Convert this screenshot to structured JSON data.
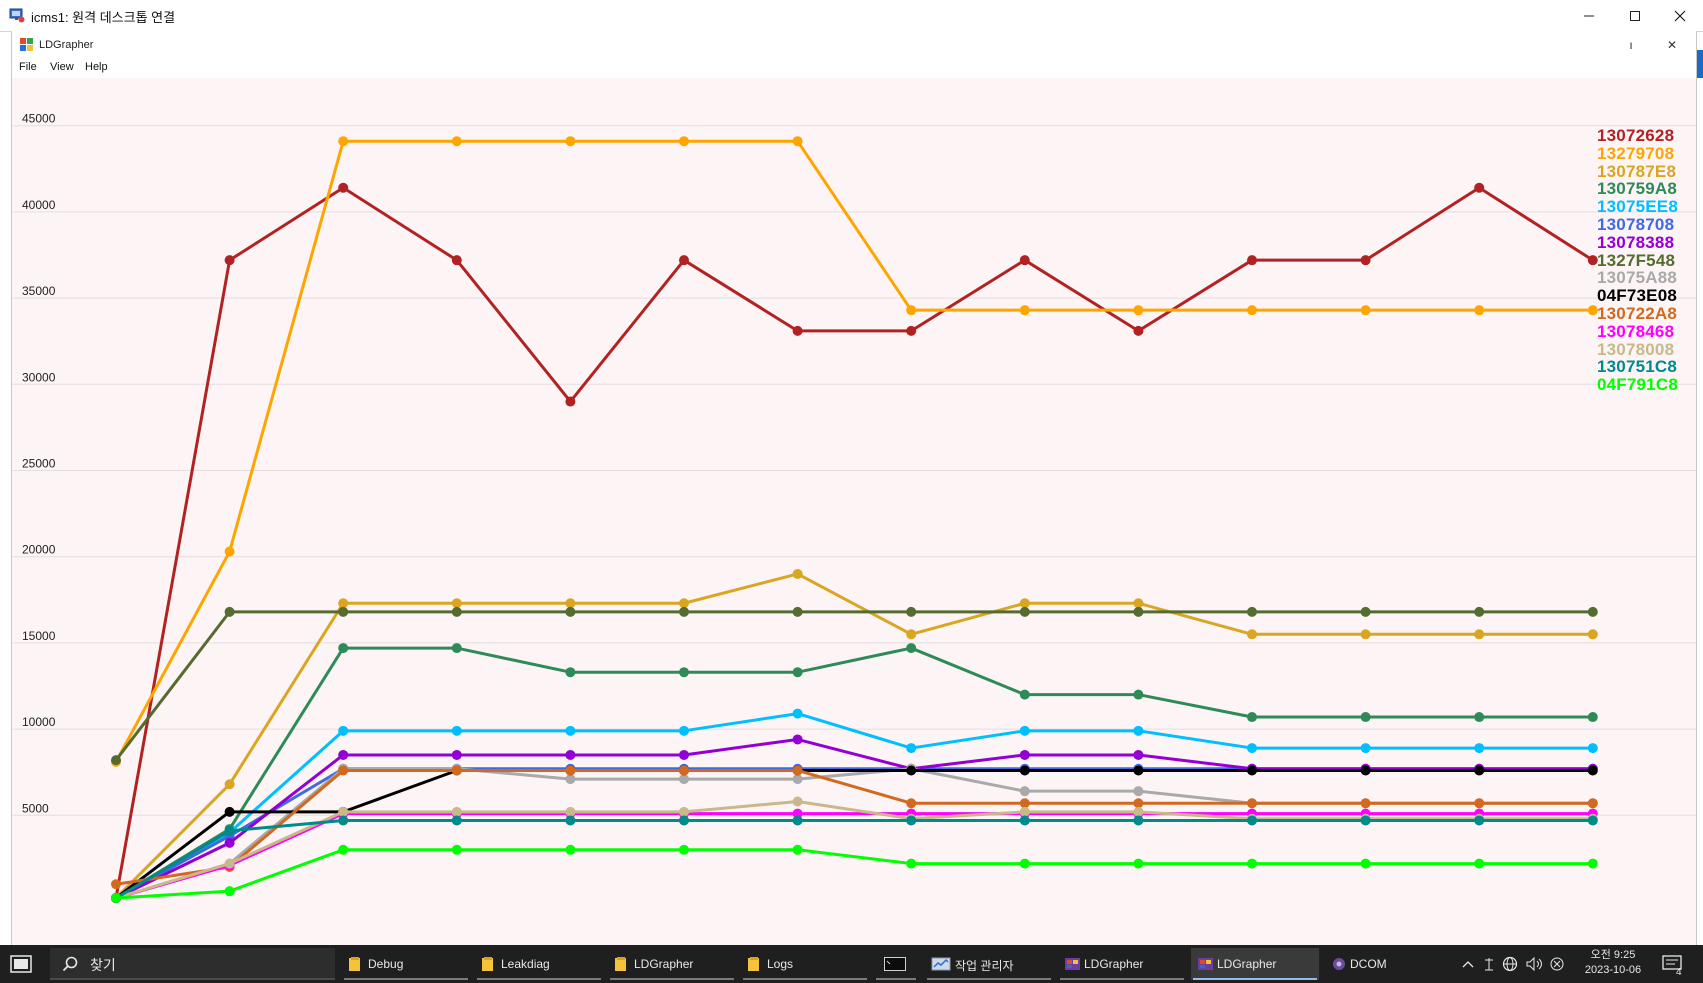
{
  "remote_desktop": {
    "title": "icms1: 원격 데스크톱 연결",
    "controls": {
      "minimize": "—",
      "maximize": "☐",
      "close": "✕"
    }
  },
  "app": {
    "title": "LDGrapher",
    "controls": {
      "minimize": "ı",
      "close": "✕"
    },
    "menu": [
      "File",
      "View",
      "Help"
    ]
  },
  "chart_data": {
    "type": "line",
    "title": "",
    "xlabel": "",
    "ylabel": "",
    "x": [
      1,
      2,
      3,
      4,
      5,
      6,
      7,
      8,
      9,
      10,
      11,
      12,
      13,
      14
    ],
    "ylim": [
      0,
      50000
    ],
    "yticks": [
      5000,
      10000,
      15000,
      20000,
      25000,
      30000,
      35000,
      40000,
      45000
    ],
    "grid": "horizontal",
    "legend_position": "top-right",
    "background": "#fdf4f6",
    "series": [
      {
        "name": "13072628",
        "color": "#b22222",
        "values": [
          200,
          37200,
          41400,
          37200,
          29000,
          37200,
          33100,
          33100,
          37200,
          33100,
          37200,
          37200,
          41400,
          37200
        ]
      },
      {
        "name": "13279708",
        "color": "#ffa500",
        "values": [
          8100,
          20300,
          44100,
          44100,
          44100,
          44100,
          44100,
          34300,
          34300,
          34300,
          34300,
          34300,
          34300,
          34300
        ]
      },
      {
        "name": "130787E8",
        "color": "#daa520",
        "values": [
          200,
          6800,
          17300,
          17300,
          17300,
          17300,
          19000,
          15500,
          17300,
          17300,
          15500,
          15500,
          15500,
          15500
        ]
      },
      {
        "name": "130759A8",
        "color": "#2e8b57",
        "values": [
          200,
          4200,
          14700,
          14700,
          13300,
          13300,
          13300,
          14700,
          12000,
          12000,
          10700,
          10700,
          10700,
          10700
        ]
      },
      {
        "name": "13075EE8",
        "color": "#00bfff",
        "values": [
          200,
          4000,
          9900,
          9900,
          9900,
          9900,
          10900,
          8900,
          9900,
          9900,
          8900,
          8900,
          8900,
          8900
        ]
      },
      {
        "name": "13078708",
        "color": "#4169e1",
        "values": [
          200,
          3800,
          7700,
          7700,
          7700,
          7700,
          7700,
          7700,
          7700,
          7700,
          7700,
          7700,
          7700,
          7700
        ]
      },
      {
        "name": "13078388",
        "color": "#9400d3",
        "values": [
          200,
          3400,
          8500,
          8500,
          8500,
          8500,
          9400,
          7700,
          8500,
          8500,
          7700,
          7700,
          7700,
          7700
        ]
      },
      {
        "name": "1327F548",
        "color": "#556b2f",
        "values": [
          8200,
          16800,
          16800,
          16800,
          16800,
          16800,
          16800,
          16800,
          16800,
          16800,
          16800,
          16800,
          16800,
          16800
        ]
      },
      {
        "name": "13075A88",
        "color": "#a9a9a9",
        "values": [
          200,
          2200,
          7700,
          7700,
          7100,
          7100,
          7100,
          7700,
          6400,
          6400,
          5700,
          5700,
          5700,
          5700
        ]
      },
      {
        "name": "04F73E08",
        "color": "#000000",
        "values": [
          200,
          5200,
          5200,
          7600,
          7600,
          7600,
          7600,
          7600,
          7600,
          7600,
          7600,
          7600,
          7600,
          7600
        ]
      },
      {
        "name": "130722A8",
        "color": "#d2691e",
        "values": [
          1000,
          2000,
          7600,
          7600,
          7600,
          7600,
          7600,
          5700,
          5700,
          5700,
          5700,
          5700,
          5700,
          5700
        ]
      },
      {
        "name": "13078468",
        "color": "#ff00ff",
        "values": [
          200,
          2100,
          5100,
          5100,
          5100,
          5100,
          5100,
          5100,
          5100,
          5100,
          5100,
          5100,
          5100,
          5100
        ]
      },
      {
        "name": "13078008",
        "color": "#c8b88a",
        "values": [
          200,
          2200,
          5200,
          5200,
          5200,
          5200,
          5800,
          4800,
          5200,
          5200,
          4800,
          4800,
          4800,
          4800
        ]
      },
      {
        "name": "130751C8",
        "color": "#008b8b",
        "values": [
          200,
          4100,
          4700,
          4700,
          4700,
          4700,
          4700,
          4700,
          4700,
          4700,
          4700,
          4700,
          4700,
          4700
        ]
      },
      {
        "name": "04F791C8",
        "color": "#00ff00",
        "values": [
          200,
          600,
          3000,
          3000,
          3000,
          3000,
          3000,
          2200,
          2200,
          2200,
          2200,
          2200,
          2200,
          2200
        ]
      }
    ]
  },
  "taskbar": {
    "search_label": "찾기",
    "apps": [
      {
        "label": "Debug",
        "icon": "folder-icon"
      },
      {
        "label": "Leakdiag",
        "icon": "folder-icon"
      },
      {
        "label": "LDGrapher",
        "icon": "folder-icon"
      },
      {
        "label": "Logs",
        "icon": "folder-icon"
      },
      {
        "label": "",
        "icon": "terminal-icon"
      },
      {
        "label": "작업 관리자",
        "icon": "task-manager-icon"
      },
      {
        "label": "LDGrapher",
        "icon": "ldgrapher-icon"
      },
      {
        "label": "LDGrapher",
        "icon": "ldgrapher-icon"
      },
      {
        "label": "DCOM",
        "icon": "dcom-icon"
      }
    ],
    "clock": {
      "time": "오전 9:25",
      "date": "2023-10-06"
    },
    "notification_count": "4",
    "colors": {
      "taskbar": "#1f1f1f",
      "active_underline": "#8fbfef"
    }
  }
}
